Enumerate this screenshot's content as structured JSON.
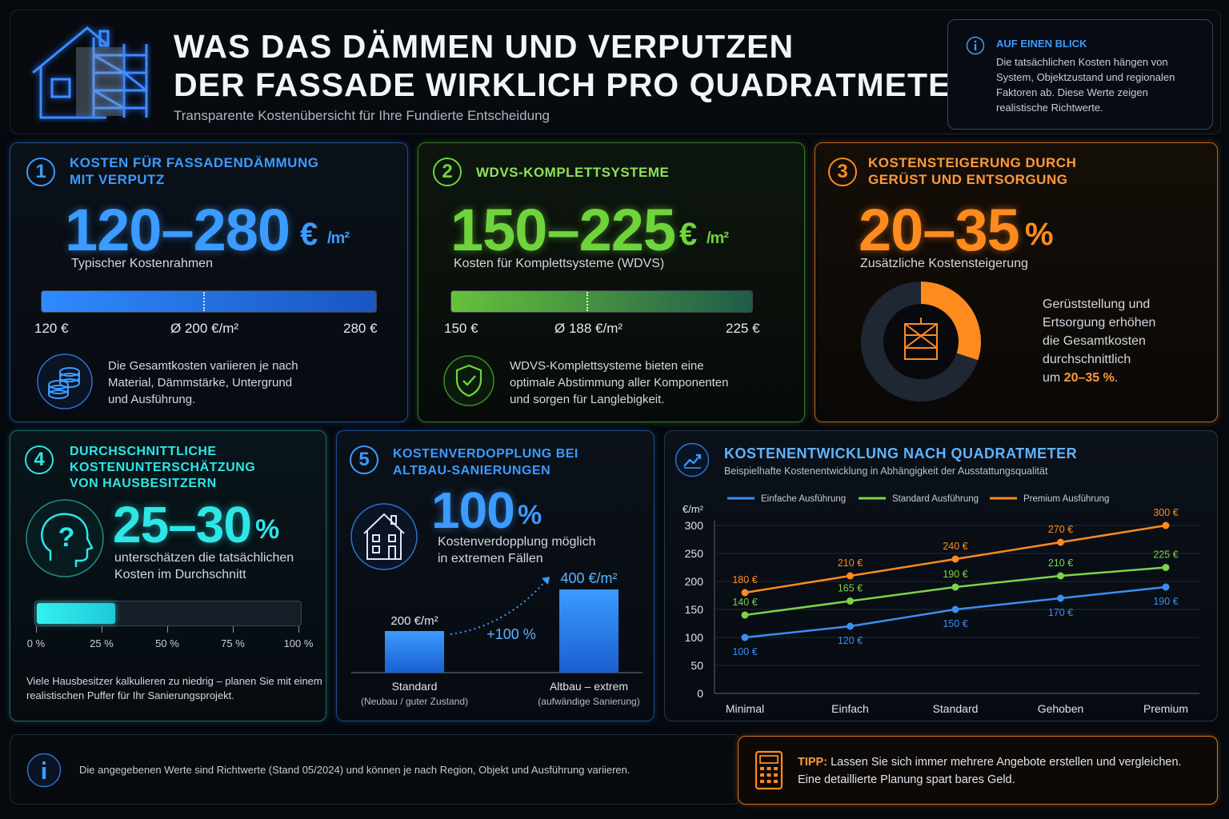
{
  "header": {
    "title_line1": "WAS DAS DÄMMEN UND VERPUTZEN",
    "title_line2": "DER FASSADE WIRKLICH PRO QUADRATMETER KOSTET",
    "subtitle": "Transparente Kostenübersicht für Ihre Fundierte Entscheidung",
    "house_icon": "house-scaffold-icon"
  },
  "info_box": {
    "title": "AUF EINEN BLICK",
    "text": "Die tatsächlichen Kosten hängen von\nSystem, Objektzustand und regionalen\nFaktoren ab. Diese Werte zeigen\nrealistische Richtwerte.",
    "icon": "info-icon"
  },
  "panel1": {
    "number": "1",
    "title": "KOSTEN FÜR FASSADENDÄMMUNG\nMIT VERPUTZ",
    "value": "120–280",
    "unit_euro": "€",
    "unit_sqm": "/m²",
    "caption": "Typischer Kostenrahmen",
    "range_min": "120 €",
    "range_avg": "Ø 200 €/m²",
    "range_max": "280 €",
    "avg_fraction": 0.5,
    "note": "Die Gesamtkosten variieren je nach\nMaterial, Dämmstärke, Untergrund\nund Ausführung.",
    "icon": "coins-icon",
    "color": "#3b9bff"
  },
  "panel2": {
    "number": "2",
    "title": "WDVS-KOMPLETTSYSTEME",
    "value": "150–225",
    "unit_euro": "€",
    "unit_sqm": "/m²",
    "caption": "Kosten für Komplettsysteme (WDVS)",
    "range_min": "150 €",
    "range_avg": "Ø 188 €/m²",
    "range_max": "225 €",
    "avg_fraction": 0.5,
    "note": "WDVS-Komplettsysteme bieten eine\noptimale Abstimmung aller Komponenten\nund sorgen für Langlebigkeit.",
    "icon": "shield-check-icon",
    "color": "#6fd43c"
  },
  "panel3": {
    "number": "3",
    "title": "KOSTENSTEIGERUNG DURCH\nGERÜST UND ENTSORGUNG",
    "value": "20–35",
    "unit": "%",
    "caption": "Zusätzliche Kostensteigerung",
    "donut_fraction": 0.3,
    "note_prefix": "Gerüststellung und\nErtsorgung erhöhen\ndie Gesamtkosten\ndurchschnittlich\num ",
    "note_highlight": "20–35 %",
    "note_suffix": ".",
    "icon": "scaffold-icon",
    "color": "#ff8a1e"
  },
  "panel4": {
    "number": "4",
    "title": "DURCHSCHNITTLICHE\nKOSTENUNTERSCHÄTZUNG\nVON HAUSBESITZERN",
    "value": "25–30",
    "unit": "%",
    "caption": "unterschätzen die tatsächlichen\nKosten im Durchschnitt",
    "bar_fraction": 0.3,
    "scale": [
      "0 %",
      "25 %",
      "50 %",
      "75 %",
      "100 %"
    ],
    "note": "Viele Hausbesitzer kalkulieren zu niedrig – planen Sie mit einem\nrealistischen Puffer für Ihr Sanierungsprojekt.",
    "icon": "head-question-icon",
    "color": "#2ee6e6"
  },
  "panel5": {
    "number": "5",
    "title": "KOSTENVERDOPPLUNG BEI\nALTBAU-SANIERUNGEN",
    "value": "100",
    "unit": "%",
    "caption": "Kostenverdopplung möglich\nin extremen Fällen",
    "bar1_value": 200,
    "bar1_label": "200 €/m²",
    "bar1_name": "Standard",
    "bar1_sub": "(Neubau / guter Zustand)",
    "bar2_value": 400,
    "bar2_label": "400 €/m²",
    "bar2_name": "Altbau – extrem",
    "bar2_sub": "(aufwändige Sanierung)",
    "increase": "+100 %",
    "icon": "old-house-icon",
    "color": "#3b9bff"
  },
  "chart_panel": {
    "title": "KOSTENENTWICKLUNG NACH QUADRATMETER",
    "subtitle": "Beispielhafte Kostenentwicklung in Abhängigkeit der Ausstattungsqualität",
    "icon": "trend-chart-icon"
  },
  "chart_data": {
    "type": "line",
    "title": "KOSTENENTWICKLUNG NACH QUADRATMETER",
    "ylabel": "€/m²",
    "xlabel": "",
    "categories": [
      "Minimal",
      "Einfach",
      "Standard",
      "Gehoben",
      "Premium"
    ],
    "ylim": [
      0,
      300
    ],
    "yticks": [
      0,
      50,
      100,
      150,
      200,
      250,
      300
    ],
    "grid": true,
    "legend_position": "top",
    "series": [
      {
        "name": "Einfache Ausführung",
        "color": "#3b8ef0",
        "values": [
          100,
          120,
          150,
          170,
          190
        ],
        "labels": [
          "100 €",
          "120 €",
          "150 €",
          "170 €",
          "190 €"
        ],
        "label_side": "below"
      },
      {
        "name": "Standard Ausführung",
        "color": "#7ed348",
        "values": [
          140,
          165,
          190,
          210,
          225
        ],
        "labels": [
          "140 €",
          "165 €",
          "190 €",
          "210 €",
          "225 €"
        ],
        "label_side": "above"
      },
      {
        "name": "Premium Ausführung",
        "color": "#ff8a1e",
        "values": [
          180,
          210,
          240,
          270,
          300
        ],
        "labels": [
          "180 €",
          "210 €",
          "240 €",
          "270 €",
          "300 €"
        ],
        "label_side": "above"
      }
    ]
  },
  "footer": {
    "disclaimer": "Die angegebenen Werte sind Richtwerte (Stand 05/2024) und können je nach Region, Objekt und Ausführung variieren.",
    "tip_label": "TIPP:",
    "tip_text1": " Lassen Sie sich immer mehrere Angebote erstellen und vergleichen.",
    "tip_text2": "Eine detaillierte Planung spart bares Geld.",
    "info_icon": "info-icon",
    "tip_icon": "calculator-icon"
  }
}
